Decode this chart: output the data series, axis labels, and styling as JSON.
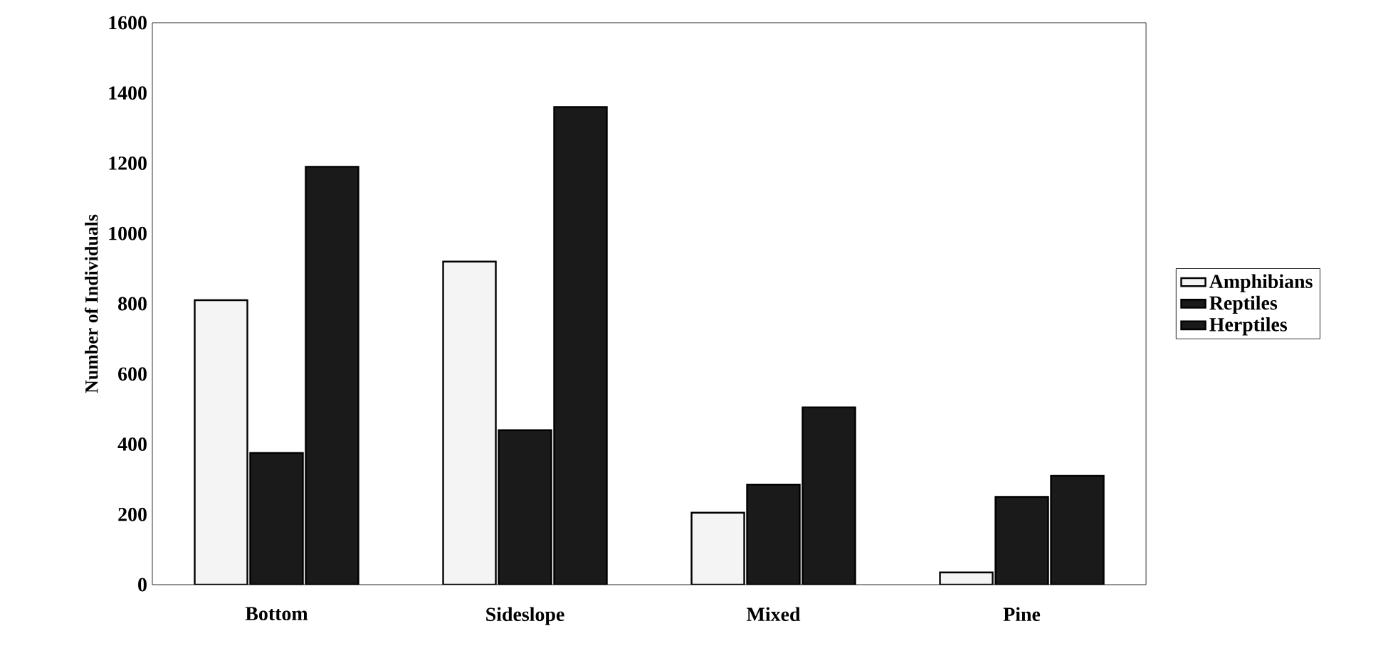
{
  "chart_data": {
    "type": "bar",
    "ylabel": "Number of Individuals",
    "categories": [
      "Bottom",
      "Sideslope",
      "Mixed",
      "Pine"
    ],
    "series": [
      {
        "name": "Amphibians",
        "color": "#f4f4f4",
        "values": [
          810,
          920,
          205,
          35
        ]
      },
      {
        "name": "Reptiles",
        "color": "#1a1a1a",
        "values": [
          375,
          440,
          285,
          250
        ]
      },
      {
        "name": "Herptiles",
        "color": "#1a1a1a",
        "values": [
          1190,
          1360,
          505,
          310
        ]
      }
    ],
    "ylim": [
      0,
      1600
    ],
    "yticks": [
      0,
      200,
      400,
      600,
      800,
      1000,
      1200,
      1400,
      1600
    ],
    "legend": "right",
    "grid": false
  }
}
